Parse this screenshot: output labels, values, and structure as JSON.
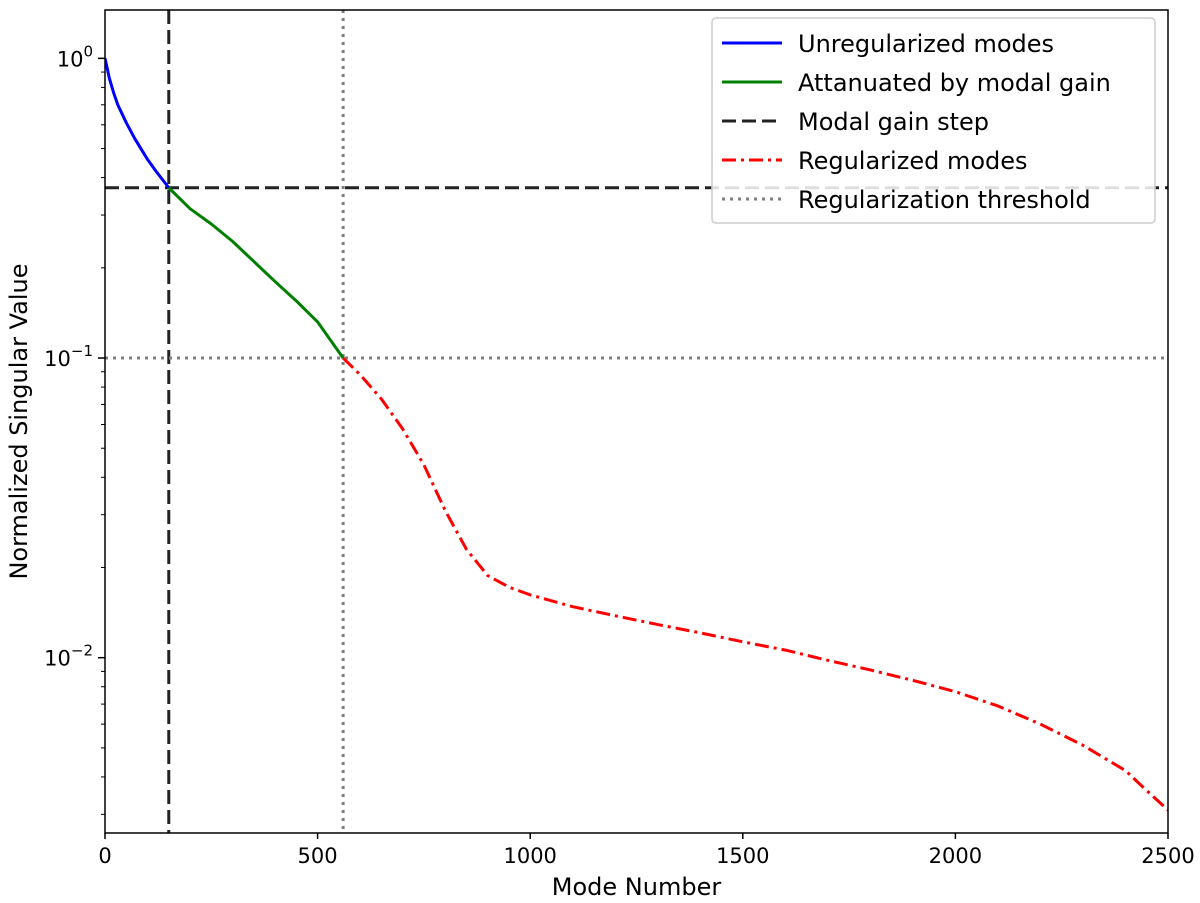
{
  "chart_data": {
    "type": "line",
    "xlabel": "Mode Number",
    "ylabel": "Normalized Singular Value",
    "xlim": [
      0,
      2500
    ],
    "ylim": [
      0.0026,
      1.45
    ],
    "yscale": "log",
    "grid": false,
    "legend_position": "top-right",
    "x_ticks": [
      0,
      500,
      1000,
      1500,
      2000,
      2500
    ],
    "x_tick_labels": [
      "0",
      "500",
      "1000",
      "1500",
      "2000",
      "2500"
    ],
    "y_ticks": [
      1,
      0.1,
      0.01
    ],
    "y_tick_labels": [
      {
        "base": "10",
        "exp": "0"
      },
      {
        "base": "10",
        "exp": "−1"
      },
      {
        "base": "10",
        "exp": "−2"
      }
    ],
    "series": [
      {
        "name": "Unregularized modes",
        "color": "#0000ff",
        "style": "solid",
        "x": [
          0,
          5,
          10,
          20,
          30,
          50,
          70,
          100,
          120,
          150
        ],
        "y": [
          1.0,
          0.93,
          0.86,
          0.77,
          0.7,
          0.61,
          0.54,
          0.46,
          0.42,
          0.37
        ]
      },
      {
        "name": "Attanuated by modal gain",
        "color": "#008000",
        "style": "solid",
        "x": [
          150,
          200,
          250,
          300,
          350,
          400,
          450,
          500,
          560
        ],
        "y": [
          0.37,
          0.315,
          0.28,
          0.245,
          0.21,
          0.18,
          0.155,
          0.132,
          0.1
        ]
      },
      {
        "name": "Regularized modes",
        "color": "#ff0000",
        "style": "dashdot",
        "x": [
          560,
          600,
          650,
          700,
          750,
          800,
          850,
          900,
          950,
          1000,
          1100,
          1200,
          1300,
          1400,
          1500,
          1600,
          1700,
          1800,
          1900,
          2000,
          2100,
          2200,
          2300,
          2400,
          2450,
          2500
        ],
        "y": [
          0.1,
          0.088,
          0.073,
          0.058,
          0.044,
          0.031,
          0.023,
          0.0188,
          0.0172,
          0.0162,
          0.0148,
          0.0138,
          0.0129,
          0.0121,
          0.0113,
          0.0106,
          0.0098,
          0.0091,
          0.0084,
          0.0077,
          0.0069,
          0.006,
          0.0051,
          0.0042,
          0.0036,
          0.0031
        ]
      }
    ],
    "reference_lines": [
      {
        "name": "Modal gain step",
        "color": "#222222",
        "style": "dashed",
        "x": 150,
        "y": 0.37
      },
      {
        "name": "Regularization threshold",
        "color": "#7f7f7f",
        "style": "dotted",
        "x": 560,
        "y": 0.1
      }
    ],
    "legend": [
      "Unregularized modes",
      "Attanuated by modal gain",
      "Modal gain step",
      "Regularized modes",
      "Regularization threshold"
    ]
  }
}
